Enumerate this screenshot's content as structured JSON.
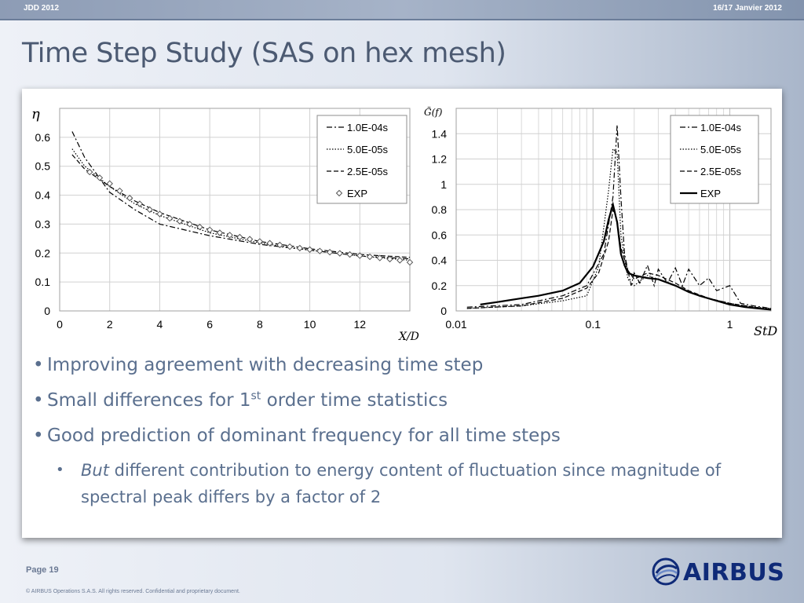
{
  "header": {
    "left": "JDD 2012",
    "right": "16/17 Janvier 2012"
  },
  "slide_title": "Time Step Study (SAS on hex mesh)",
  "chart_data": [
    {
      "type": "line",
      "ylabel": "η",
      "xlabel": "X/D",
      "xlim": [
        0,
        14
      ],
      "ylim": [
        0,
        0.7
      ],
      "x_ticks": [
        "0",
        "2",
        "4",
        "6",
        "8",
        "10",
        "12"
      ],
      "y_ticks": [
        "0",
        "0.1",
        "0.2",
        "0.3",
        "0.4",
        "0.5",
        "0.6"
      ],
      "grid": true,
      "legend_position": "top-right",
      "series": [
        {
          "name": "1.0E-04s",
          "style": "dashdot",
          "x": [
            0.5,
            1,
            2,
            3,
            4,
            6,
            8,
            10,
            12,
            14
          ],
          "y": [
            0.62,
            0.53,
            0.41,
            0.35,
            0.3,
            0.26,
            0.23,
            0.21,
            0.19,
            0.18
          ]
        },
        {
          "name": "5.0E-05s",
          "style": "dotted",
          "x": [
            0.5,
            1,
            2,
            3,
            4,
            6,
            8,
            10,
            12,
            14
          ],
          "y": [
            0.56,
            0.5,
            0.43,
            0.37,
            0.33,
            0.27,
            0.235,
            0.21,
            0.19,
            0.175
          ]
        },
        {
          "name": "2.5E-05s",
          "style": "dashed",
          "x": [
            0.5,
            1,
            2,
            3,
            4,
            6,
            8,
            10,
            12,
            14
          ],
          "y": [
            0.54,
            0.49,
            0.43,
            0.38,
            0.34,
            0.28,
            0.24,
            0.215,
            0.195,
            0.185
          ]
        },
        {
          "name": "EXP",
          "style": "diamonds",
          "x": [
            1.2,
            1.6,
            2,
            2.4,
            2.8,
            3.2,
            3.6,
            4,
            4.4,
            4.8,
            5.2,
            5.6,
            6,
            6.4,
            6.8,
            7.2,
            7.6,
            8,
            8.4,
            8.8,
            9.2,
            9.6,
            10,
            10.4,
            10.8,
            11.2,
            11.6,
            12,
            12.4,
            12.8,
            13.2,
            13.6,
            14
          ],
          "y": [
            0.48,
            0.46,
            0.44,
            0.415,
            0.39,
            0.37,
            0.35,
            0.335,
            0.32,
            0.31,
            0.3,
            0.29,
            0.28,
            0.27,
            0.262,
            0.255,
            0.248,
            0.24,
            0.234,
            0.228,
            0.222,
            0.217,
            0.212,
            0.207,
            0.203,
            0.199,
            0.195,
            0.191,
            0.187,
            0.183,
            0.179,
            0.175,
            0.168
          ]
        }
      ]
    },
    {
      "type": "line",
      "ylabel": "G̃(f)",
      "xlabel": "StD",
      "x_scale": "log",
      "xlim": [
        0.01,
        2
      ],
      "ylim": [
        0,
        1.6
      ],
      "x_ticks": [
        "0.01",
        "0.1",
        "1"
      ],
      "y_ticks": [
        "0",
        "0.2",
        "0.4",
        "0.6",
        "0.8",
        "1",
        "1.2",
        "1.4"
      ],
      "grid": true,
      "legend_position": "top-right",
      "series": [
        {
          "name": "1.0E-04s",
          "style": "dashdot",
          "x": [
            0.012,
            0.03,
            0.06,
            0.09,
            0.12,
            0.14,
            0.15,
            0.16,
            0.17,
            0.19,
            0.2,
            0.22,
            0.25,
            0.28,
            0.3,
            0.35,
            0.4,
            0.45,
            0.5,
            0.6,
            0.7,
            0.8,
            1.0,
            1.2,
            1.5,
            2.0
          ],
          "y": [
            0.03,
            0.05,
            0.12,
            0.2,
            0.45,
            0.9,
            1.47,
            0.9,
            0.45,
            0.2,
            0.3,
            0.22,
            0.36,
            0.2,
            0.33,
            0.22,
            0.34,
            0.2,
            0.33,
            0.2,
            0.26,
            0.16,
            0.2,
            0.06,
            0.04,
            0.02
          ]
        },
        {
          "name": "5.0E-05s",
          "style": "dotted",
          "x": [
            0.012,
            0.03,
            0.06,
            0.09,
            0.11,
            0.13,
            0.14,
            0.15,
            0.16,
            0.18,
            0.2,
            0.25,
            0.3,
            0.4,
            0.5,
            0.7,
            1.0,
            1.5,
            2.0
          ],
          "y": [
            0.02,
            0.04,
            0.08,
            0.12,
            0.35,
            0.95,
            1.28,
            1.25,
            0.6,
            0.25,
            0.2,
            0.28,
            0.25,
            0.2,
            0.15,
            0.1,
            0.06,
            0.03,
            0.02
          ]
        },
        {
          "name": "2.5E-05s",
          "style": "dashed",
          "x": [
            0.012,
            0.03,
            0.06,
            0.09,
            0.11,
            0.13,
            0.14,
            0.15,
            0.16,
            0.18,
            0.2,
            0.25,
            0.3,
            0.4,
            0.5,
            0.7,
            1.0,
            1.5,
            2.0
          ],
          "y": [
            0.02,
            0.04,
            0.1,
            0.18,
            0.3,
            0.55,
            0.8,
            0.72,
            0.5,
            0.32,
            0.25,
            0.3,
            0.28,
            0.22,
            0.16,
            0.1,
            0.06,
            0.03,
            0.01
          ]
        },
        {
          "name": "EXP",
          "style": "solid",
          "x": [
            0.015,
            0.02,
            0.03,
            0.04,
            0.06,
            0.08,
            0.1,
            0.12,
            0.13,
            0.14,
            0.15,
            0.16,
            0.17,
            0.18,
            0.2,
            0.25,
            0.3,
            0.4,
            0.5,
            0.6,
            0.8,
            1.0,
            1.3,
            1.6,
            2.0
          ],
          "y": [
            0.05,
            0.07,
            0.1,
            0.12,
            0.16,
            0.22,
            0.35,
            0.55,
            0.72,
            0.84,
            0.7,
            0.45,
            0.36,
            0.3,
            0.28,
            0.26,
            0.25,
            0.2,
            0.15,
            0.12,
            0.08,
            0.05,
            0.03,
            0.02,
            0.01
          ]
        }
      ]
    }
  ],
  "bullets": {
    "b1": "Improving agreement with decreasing time step",
    "b2_pre": "Small differences for 1",
    "b2_sup": "st",
    "b2_post": " order time statistics",
    "b3": "Good prediction of dominant frequency for all time steps",
    "sub_em": "But",
    "sub_rest": " different contribution to energy content of fluctuation since magnitude of spectral peak differs by a factor of 2"
  },
  "footer": {
    "page": "Page 19",
    "copyright": "© AIRBUS Operations S.A.S. All rights reserved. Confidential and proprietary document.",
    "logo_text": "AIRBUS"
  },
  "colors": {
    "title": "#4c5a72",
    "bullet_text": "#5a6f8e",
    "airbus_blue": "#0f2a78"
  }
}
